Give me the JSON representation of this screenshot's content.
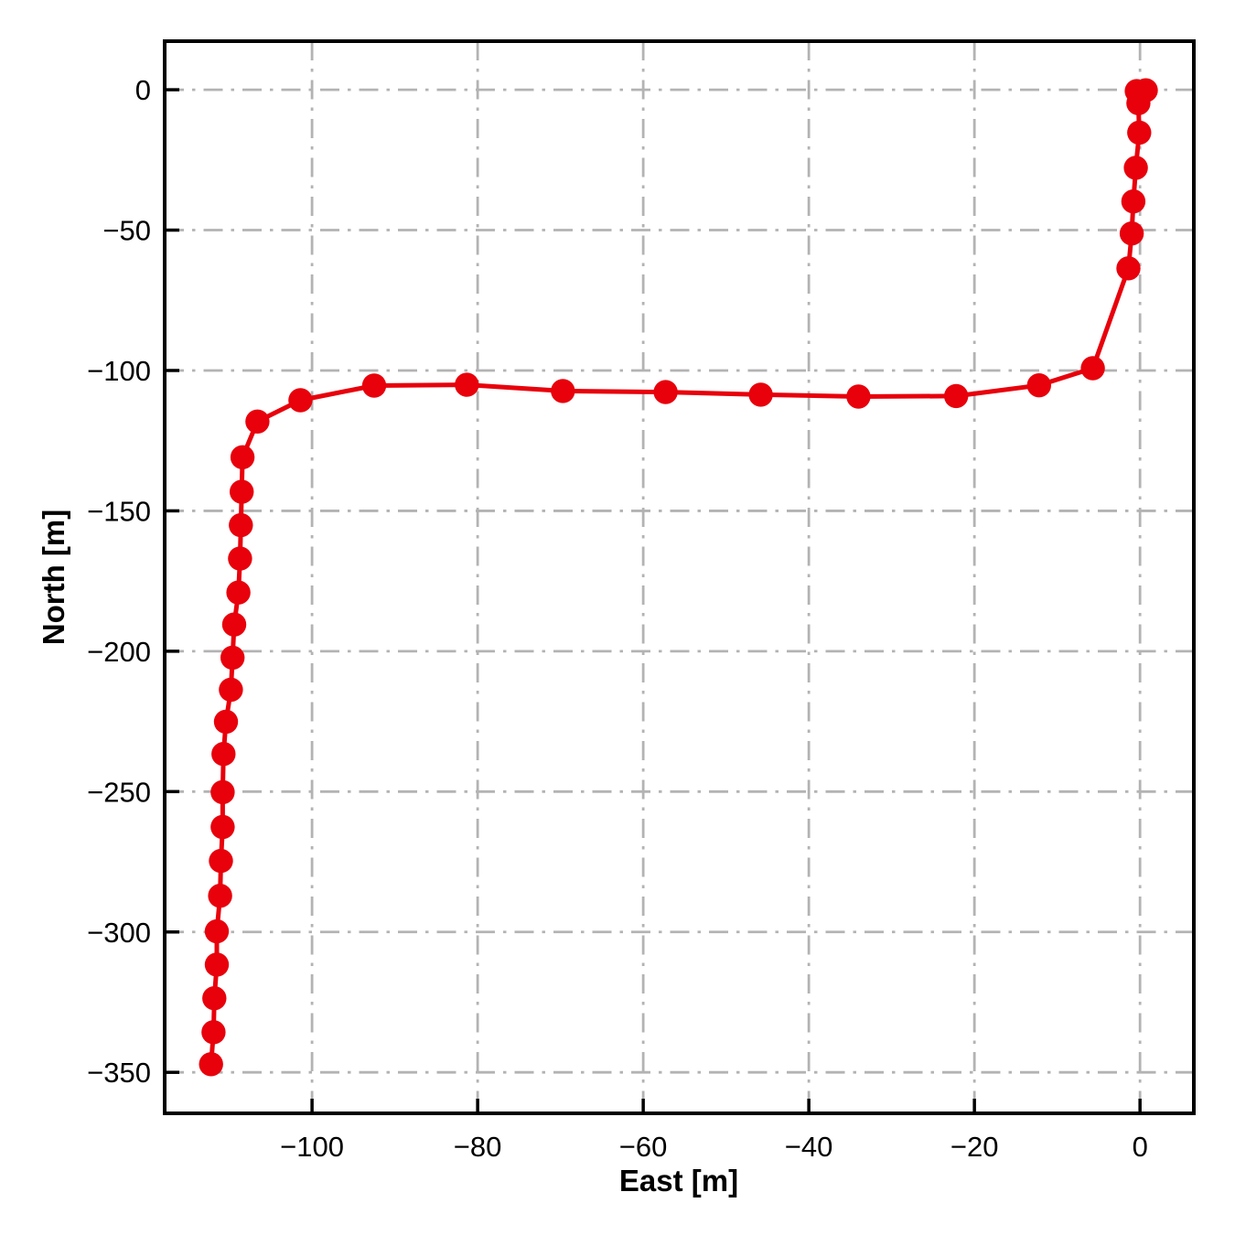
{
  "figure": {
    "background": "#ffffff"
  },
  "chart_data": {
    "type": "line",
    "title": "",
    "xlabel": "East [m]",
    "ylabel": "North [m]",
    "legend": null,
    "grid": {
      "visible": true,
      "style": "dash-dot",
      "color": "#b3b3b3"
    },
    "axis_color": "#000000",
    "tick_direction": "in",
    "xlim": [
      -117.8,
      6.5
    ],
    "ylim": [
      -364.6,
      17.3
    ],
    "xticks": [
      -100,
      -80,
      -60,
      -40,
      -20,
      0
    ],
    "yticks": [
      0,
      -50,
      -100,
      -150,
      -200,
      -250,
      -300,
      -350
    ],
    "series": [
      {
        "name": "trajectory",
        "color": "#e8000b",
        "marker": "circle",
        "points": [
          [
            0.7,
            -0.2
          ],
          [
            -0.4,
            -0.5
          ],
          [
            -0.2,
            -4.8
          ],
          [
            -0.1,
            -15.3
          ],
          [
            -0.5,
            -27.8
          ],
          [
            -0.8,
            -39.8
          ],
          [
            -1.0,
            -51.2
          ],
          [
            -1.4,
            -63.6
          ],
          [
            -5.7,
            -99.2
          ],
          [
            -12.2,
            -105.3
          ],
          [
            -22.2,
            -109.1
          ],
          [
            -34.0,
            -109.3
          ],
          [
            -45.8,
            -108.6
          ],
          [
            -57.3,
            -107.7
          ],
          [
            -69.7,
            -107.3
          ],
          [
            -81.3,
            -105.1
          ],
          [
            -92.5,
            -105.4
          ],
          [
            -101.4,
            -110.6
          ],
          [
            -106.6,
            -118.2
          ],
          [
            -108.4,
            -130.9
          ],
          [
            -108.5,
            -143.2
          ],
          [
            -108.6,
            -155.1
          ],
          [
            -108.7,
            -167.0
          ],
          [
            -108.9,
            -179.1
          ],
          [
            -109.4,
            -190.5
          ],
          [
            -109.6,
            -202.3
          ],
          [
            -109.8,
            -213.7
          ],
          [
            -110.4,
            -225.1
          ],
          [
            -110.7,
            -236.6
          ],
          [
            -110.8,
            -250.2
          ],
          [
            -110.8,
            -262.6
          ],
          [
            -111.0,
            -274.7
          ],
          [
            -111.1,
            -287.1
          ],
          [
            -111.5,
            -299.8
          ],
          [
            -111.5,
            -311.6
          ],
          [
            -111.8,
            -323.6
          ],
          [
            -111.9,
            -335.7
          ],
          [
            -112.2,
            -347.1
          ]
        ]
      }
    ]
  }
}
